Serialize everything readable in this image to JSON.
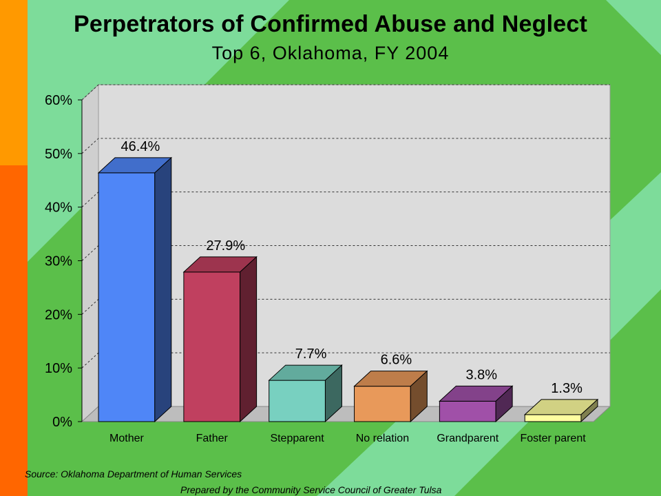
{
  "slide": {
    "title": "Perpetrators of Confirmed Abuse and Neglect",
    "subtitle": "Top 6, Oklahoma, FY 2004",
    "source": "Source:  Oklahoma Department of Human Services",
    "prepared_by": "Prepared by the Community Service Council of Greater Tulsa"
  },
  "colors": {
    "background_green": "#5bbf4a",
    "light_green": "#7ddc9a",
    "orange_bar": "#ff9900",
    "red_orange_bar": "#ff6600",
    "plot_bg": "#dcdcdc"
  },
  "chart_data": {
    "type": "bar",
    "style": "3d",
    "title": "",
    "xlabel": "",
    "ylabel": "",
    "ylim": [
      0,
      60
    ],
    "y_ticks": [
      "0%",
      "10%",
      "20%",
      "30%",
      "40%",
      "50%",
      "60%"
    ],
    "grid": true,
    "categories": [
      "Mother",
      "Father",
      "Stepparent",
      "No relation",
      "Grandparent",
      "Foster parent"
    ],
    "values": [
      46.4,
      27.9,
      7.7,
      6.6,
      3.8,
      1.3
    ],
    "data_labels": [
      "46.4%",
      "27.9%",
      "7.7%",
      "6.6%",
      "3.8%",
      "1.3%"
    ],
    "bar_colors": [
      "#4f86f7",
      "#c0405f",
      "#78d0c0",
      "#e8995a",
      "#a050a8",
      "#ffffa0"
    ]
  }
}
